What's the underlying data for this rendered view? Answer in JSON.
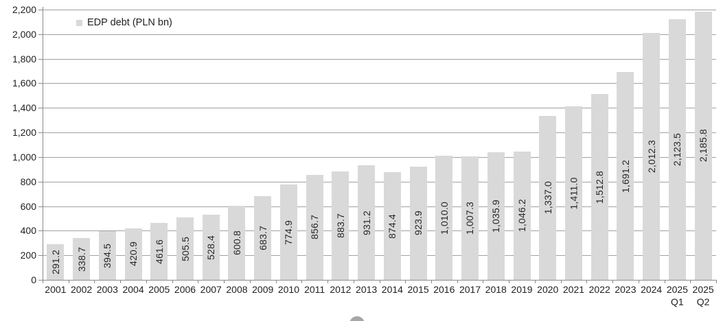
{
  "chart_data": {
    "type": "bar",
    "title": "",
    "legend": "EDP debt (PLN bn)",
    "legend_position": "top-left-inside",
    "xlabel": "",
    "ylabel": "",
    "categories": [
      "2001",
      "2002",
      "2003",
      "2004",
      "2005",
      "2006",
      "2007",
      "2008",
      "2009",
      "2010",
      "2011",
      "2012",
      "2013",
      "2014",
      "2015",
      "2016",
      "2017",
      "2018",
      "2019",
      "2020",
      "2021",
      "2022",
      "2023",
      "2024",
      "2025 Q1",
      "2025 Q2"
    ],
    "values": [
      291.2,
      338.7,
      394.5,
      420.9,
      461.6,
      505.5,
      528.4,
      600.8,
      683.7,
      774.9,
      856.7,
      883.7,
      931.2,
      874.4,
      923.9,
      1010.0,
      1007.3,
      1035.9,
      1046.2,
      1337.0,
      1411.0,
      1512.8,
      1691.2,
      2012.3,
      2123.5,
      2185.8
    ],
    "value_labels": [
      "291.2",
      "338.7",
      "394.5",
      "420.9",
      "461.6",
      "505.5",
      "528.4",
      "600.8",
      "683.7",
      "774.9",
      "856.7",
      "883.7",
      "931.2",
      "874.4",
      "923.9",
      "1,010.0",
      "1,007.3",
      "1,035.9",
      "1,046.2",
      "1,337.0",
      "1,411.0",
      "1,512.8",
      "1,691.2",
      "2,012.3",
      "2,123.5",
      "2,185.8"
    ],
    "value_label_rotation_deg": -90,
    "value_label_placement": "center-inside-bar",
    "ylim": [
      0,
      2200
    ],
    "ytick_step": 200,
    "ytick_labels": [
      "0",
      "200",
      "400",
      "600",
      "800",
      "1,000",
      "1,200",
      "1,400",
      "1,600",
      "1,800",
      "2,000",
      "2,200"
    ],
    "grid": true,
    "colors": {
      "bar_fill": "#d9d9d9",
      "gridline": "#a0a0a0",
      "axis_line": "#8a8a8a",
      "axis_text": "#1f1f1f",
      "bar_label_text": "#262626",
      "decoration_circle": "#a6a6a6"
    }
  }
}
